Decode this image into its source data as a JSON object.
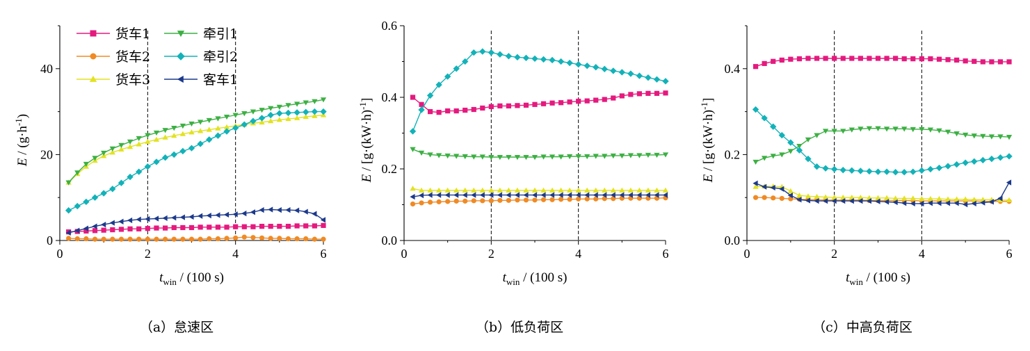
{
  "captions": [
    "（a）怠速区",
    "（b）低负荷区",
    "（c）中高负荷区"
  ],
  "legend": [
    {
      "label": "货车1",
      "marker": "square",
      "color": "#E5197E"
    },
    {
      "label": "牵引1",
      "marker": "tri-down",
      "color": "#3CB043"
    },
    {
      "label": "货车2",
      "marker": "circle",
      "color": "#F08A24"
    },
    {
      "label": "牵引2",
      "marker": "diamond",
      "color": "#12B2B8"
    },
    {
      "label": "货车3",
      "marker": "tri-up",
      "color": "#E2E222"
    },
    {
      "label": "客车1",
      "marker": "tri-left",
      "color": "#1C3A8C"
    }
  ],
  "chart_data": [
    {
      "type": "line",
      "caption": "（a）怠速区",
      "xlabel": "t_win / (100 s)",
      "ylabel": "E / (g·h^-1)",
      "xlim": [
        0,
        6
      ],
      "ylim": [
        0,
        50
      ],
      "xticks": [
        0,
        2,
        4,
        6
      ],
      "yticks": [
        0,
        20,
        40
      ],
      "ytick_labels": [
        "0",
        "20",
        "40"
      ],
      "vlines": [
        2,
        4
      ],
      "grid": false,
      "legend_position": "top-left",
      "x": [
        0.2,
        0.4,
        0.6,
        0.8,
        1.0,
        1.2,
        1.4,
        1.6,
        1.8,
        2.0,
        2.2,
        2.4,
        2.6,
        2.8,
        3.0,
        3.2,
        3.4,
        3.6,
        3.8,
        4.0,
        4.2,
        4.4,
        4.6,
        4.8,
        5.0,
        5.2,
        5.4,
        5.6,
        5.8,
        6.0
      ],
      "series": [
        {
          "name": "货车1",
          "values": [
            2.0,
            2.1,
            2.2,
            2.3,
            2.4,
            2.5,
            2.6,
            2.7,
            2.7,
            2.8,
            2.9,
            2.9,
            3.0,
            3.0,
            3.0,
            3.1,
            3.1,
            3.1,
            3.1,
            3.2,
            3.2,
            3.2,
            3.3,
            3.3,
            3.3,
            3.3,
            3.4,
            3.4,
            3.4,
            3.5
          ]
        },
        {
          "name": "货车2",
          "values": [
            0.5,
            0.4,
            0.4,
            0.3,
            0.3,
            0.3,
            0.3,
            0.3,
            0.3,
            0.3,
            0.3,
            0.3,
            0.3,
            0.3,
            0.3,
            0.3,
            0.4,
            0.4,
            0.5,
            0.6,
            0.8,
            0.7,
            0.6,
            0.5,
            0.5,
            0.4,
            0.4,
            0.4,
            0.3,
            0.3
          ]
        },
        {
          "name": "货车3",
          "values": [
            13.5,
            15.5,
            17.2,
            18.6,
            19.7,
            20.5,
            21.2,
            21.8,
            22.4,
            23.0,
            23.5,
            24.0,
            24.4,
            24.8,
            25.2,
            25.5,
            25.8,
            26.1,
            26.4,
            26.7,
            27.0,
            27.3,
            27.5,
            27.8,
            28.1,
            28.3,
            28.5,
            28.8,
            29.0,
            29.2
          ]
        },
        {
          "name": "牵引1",
          "values": [
            13.5,
            15.8,
            17.8,
            19.2,
            20.4,
            21.4,
            22.2,
            23.0,
            23.8,
            24.5,
            25.1,
            25.7,
            26.2,
            26.7,
            27.2,
            27.6,
            28.0,
            28.4,
            28.8,
            29.2,
            29.6,
            30.0,
            30.4,
            30.8,
            31.1,
            31.5,
            31.8,
            32.1,
            32.4,
            32.8
          ]
        },
        {
          "name": "牵引2",
          "values": [
            7.0,
            8.0,
            9.0,
            10.0,
            11.0,
            12.0,
            13.4,
            14.8,
            16.0,
            17.2,
            18.3,
            19.3,
            20.0,
            20.8,
            21.5,
            22.5,
            23.5,
            24.4,
            25.4,
            26.2,
            27.0,
            27.8,
            28.5,
            29.2,
            29.6,
            29.7,
            29.8,
            29.9,
            30.0,
            30.0
          ]
        },
        {
          "name": "客车1",
          "values": [
            1.8,
            2.3,
            2.8,
            3.3,
            3.7,
            4.1,
            4.4,
            4.7,
            4.9,
            5.0,
            5.1,
            5.2,
            5.3,
            5.4,
            5.5,
            5.7,
            5.8,
            5.9,
            6.0,
            6.1,
            6.3,
            6.6,
            7.1,
            7.2,
            7.1,
            7.1,
            7.0,
            6.7,
            6.2,
            4.8
          ]
        }
      ]
    },
    {
      "type": "line",
      "caption": "（b）低负荷区",
      "xlabel": "t_win / (100 s)",
      "ylabel": "E / [g·(kW·h)^-1]",
      "xlim": [
        0,
        6
      ],
      "ylim": [
        0,
        0.6
      ],
      "xticks": [
        0,
        2,
        4,
        6
      ],
      "yticks": [
        0,
        0.2,
        0.4,
        0.6
      ],
      "ytick_labels": [
        "0.0",
        "0.2",
        "0.4",
        "0.6"
      ],
      "vlines": [
        2,
        4
      ],
      "grid": false,
      "x": [
        0.2,
        0.4,
        0.6,
        0.8,
        1.0,
        1.2,
        1.4,
        1.6,
        1.8,
        2.0,
        2.2,
        2.4,
        2.6,
        2.8,
        3.0,
        3.2,
        3.4,
        3.6,
        3.8,
        4.0,
        4.2,
        4.4,
        4.6,
        4.8,
        5.0,
        5.2,
        5.4,
        5.6,
        5.8,
        6.0
      ],
      "series": [
        {
          "name": "货车1",
          "values": [
            0.4,
            0.38,
            0.36,
            0.358,
            0.362,
            0.362,
            0.364,
            0.366,
            0.37,
            0.374,
            0.376,
            0.376,
            0.377,
            0.378,
            0.38,
            0.382,
            0.384,
            0.385,
            0.387,
            0.389,
            0.39,
            0.392,
            0.394,
            0.398,
            0.404,
            0.408,
            0.41,
            0.411,
            0.411,
            0.412
          ]
        },
        {
          "name": "货车2",
          "values": [
            0.102,
            0.105,
            0.107,
            0.108,
            0.109,
            0.11,
            0.11,
            0.111,
            0.111,
            0.111,
            0.112,
            0.112,
            0.113,
            0.113,
            0.113,
            0.114,
            0.114,
            0.115,
            0.115,
            0.116,
            0.116,
            0.116,
            0.117,
            0.117,
            0.118,
            0.118,
            0.118,
            0.118,
            0.118,
            0.119
          ]
        },
        {
          "name": "货车3",
          "values": [
            0.145,
            0.14,
            0.14,
            0.14,
            0.14,
            0.14,
            0.14,
            0.14,
            0.14,
            0.14,
            0.14,
            0.14,
            0.14,
            0.14,
            0.14,
            0.14,
            0.14,
            0.14,
            0.14,
            0.14,
            0.14,
            0.14,
            0.14,
            0.14,
            0.14,
            0.14,
            0.14,
            0.14,
            0.14,
            0.14
          ]
        },
        {
          "name": "牵引1",
          "values": [
            0.255,
            0.245,
            0.24,
            0.238,
            0.237,
            0.236,
            0.235,
            0.234,
            0.234,
            0.233,
            0.233,
            0.233,
            0.233,
            0.233,
            0.233,
            0.234,
            0.234,
            0.234,
            0.235,
            0.235,
            0.235,
            0.236,
            0.236,
            0.237,
            0.237,
            0.238,
            0.238,
            0.239,
            0.239,
            0.24
          ]
        },
        {
          "name": "牵引2",
          "values": [
            0.305,
            0.365,
            0.405,
            0.435,
            0.458,
            0.48,
            0.5,
            0.525,
            0.528,
            0.525,
            0.52,
            0.515,
            0.512,
            0.51,
            0.508,
            0.506,
            0.504,
            0.5,
            0.496,
            0.492,
            0.488,
            0.484,
            0.479,
            0.474,
            0.47,
            0.466,
            0.46,
            0.455,
            0.45,
            0.445
          ]
        },
        {
          "name": "客车1",
          "values": [
            0.122,
            0.126,
            0.127,
            0.127,
            0.127,
            0.127,
            0.127,
            0.127,
            0.127,
            0.127,
            0.127,
            0.127,
            0.127,
            0.127,
            0.127,
            0.127,
            0.127,
            0.127,
            0.127,
            0.127,
            0.127,
            0.127,
            0.127,
            0.127,
            0.127,
            0.127,
            0.127,
            0.127,
            0.127,
            0.127
          ]
        }
      ]
    },
    {
      "type": "line",
      "caption": "（c）中高负荷区",
      "xlabel": "t_win / (100 s)",
      "ylabel": "E / [g·(kW·h)^-1]",
      "xlim": [
        0,
        6
      ],
      "ylim": [
        0,
        0.5
      ],
      "xticks": [
        0,
        2,
        4,
        6
      ],
      "yticks": [
        0,
        0.2,
        0.4
      ],
      "ytick_labels": [
        "0.0",
        "0.2",
        "0.4"
      ],
      "vlines": [
        2,
        4
      ],
      "grid": false,
      "x": [
        0.2,
        0.4,
        0.6,
        0.8,
        1.0,
        1.2,
        1.4,
        1.6,
        1.8,
        2.0,
        2.2,
        2.4,
        2.6,
        2.8,
        3.0,
        3.2,
        3.4,
        3.6,
        3.8,
        4.0,
        4.2,
        4.4,
        4.6,
        4.8,
        5.0,
        5.2,
        5.4,
        5.6,
        5.8,
        6.0
      ],
      "series": [
        {
          "name": "货车1",
          "values": [
            0.405,
            0.412,
            0.417,
            0.42,
            0.422,
            0.423,
            0.424,
            0.424,
            0.424,
            0.424,
            0.424,
            0.424,
            0.424,
            0.424,
            0.424,
            0.424,
            0.424,
            0.423,
            0.423,
            0.423,
            0.423,
            0.422,
            0.421,
            0.42,
            0.418,
            0.417,
            0.416,
            0.416,
            0.416,
            0.416
          ]
        },
        {
          "name": "货车2",
          "values": [
            0.1,
            0.1,
            0.099,
            0.098,
            0.097,
            0.096,
            0.095,
            0.095,
            0.094,
            0.094,
            0.094,
            0.094,
            0.094,
            0.093,
            0.093,
            0.093,
            0.093,
            0.093,
            0.093,
            0.092,
            0.092,
            0.092,
            0.092,
            0.092,
            0.092,
            0.092,
            0.091,
            0.091,
            0.091,
            0.091
          ]
        },
        {
          "name": "货车3",
          "values": [
            0.125,
            0.126,
            0.126,
            0.125,
            0.115,
            0.105,
            0.103,
            0.102,
            0.101,
            0.1,
            0.1,
            0.1,
            0.1,
            0.099,
            0.099,
            0.099,
            0.098,
            0.098,
            0.098,
            0.097,
            0.097,
            0.097,
            0.096,
            0.096,
            0.096,
            0.095,
            0.095,
            0.095,
            0.094,
            0.094
          ]
        },
        {
          "name": "牵引1",
          "values": [
            0.183,
            0.192,
            0.197,
            0.2,
            0.208,
            0.22,
            0.235,
            0.245,
            0.255,
            0.255,
            0.255,
            0.258,
            0.26,
            0.261,
            0.261,
            0.26,
            0.26,
            0.26,
            0.259,
            0.259,
            0.258,
            0.256,
            0.253,
            0.249,
            0.246,
            0.244,
            0.243,
            0.242,
            0.242,
            0.241
          ]
        },
        {
          "name": "牵引2",
          "values": [
            0.305,
            0.285,
            0.265,
            0.245,
            0.228,
            0.21,
            0.19,
            0.172,
            0.168,
            0.166,
            0.164,
            0.163,
            0.162,
            0.161,
            0.16,
            0.16,
            0.159,
            0.159,
            0.16,
            0.163,
            0.166,
            0.169,
            0.173,
            0.177,
            0.181,
            0.184,
            0.187,
            0.19,
            0.193,
            0.196
          ]
        },
        {
          "name": "客车1",
          "values": [
            0.133,
            0.125,
            0.123,
            0.12,
            0.105,
            0.095,
            0.093,
            0.092,
            0.092,
            0.092,
            0.092,
            0.092,
            0.092,
            0.092,
            0.091,
            0.09,
            0.089,
            0.087,
            0.086,
            0.086,
            0.087,
            0.087,
            0.087,
            0.087,
            0.084,
            0.086,
            0.088,
            0.09,
            0.098,
            0.135
          ]
        }
      ]
    }
  ]
}
